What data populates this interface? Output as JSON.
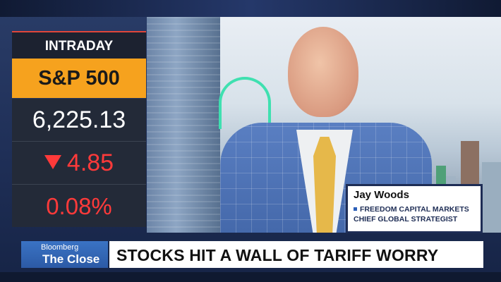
{
  "ticker_panel": {
    "label": "INTRADAY",
    "index_name": "S&P 500",
    "price": "6,225.13",
    "change": "4.85",
    "change_direction_icon": "down-triangle-icon",
    "percent_change": "0.08%",
    "colors": {
      "accent": "#f6a21e",
      "negative": "#ff3a3a",
      "panel": "#232a38"
    }
  },
  "guest": {
    "name": "Jay Woods",
    "company": "FREEDOM CAPITAL MARKETS",
    "title": "CHIEF GLOBAL STRATEGIST"
  },
  "show": {
    "brand": "Bloomberg",
    "name": "The Close"
  },
  "headline": "STOCKS HIT A WALL OF TARIFF WORRY"
}
